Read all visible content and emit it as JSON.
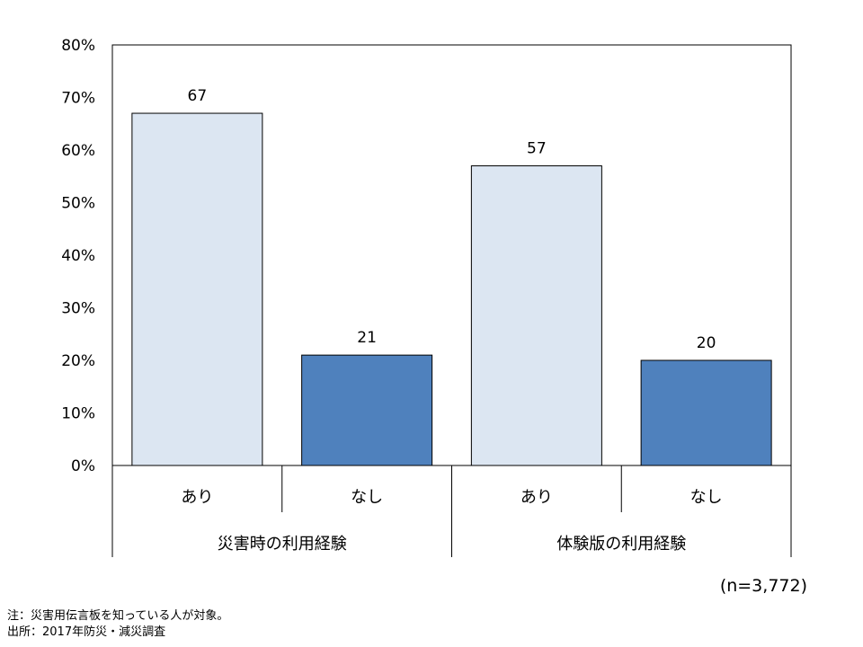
{
  "chart_data": {
    "type": "bar",
    "groups": [
      {
        "label": "災害時の利用経験",
        "categories": [
          "あり",
          "なし"
        ],
        "values": [
          67,
          21
        ]
      },
      {
        "label": "体験版の利用経験",
        "categories": [
          "あり",
          "なし"
        ],
        "values": [
          57,
          20
        ]
      }
    ],
    "y_ticks": [
      "0%",
      "10%",
      "20%",
      "30%",
      "40%",
      "50%",
      "60%",
      "70%",
      "80%"
    ],
    "ylim": [
      0,
      80
    ],
    "grid": false,
    "colors": {
      "あり": "#dce6f2",
      "なし": "#4f81bd"
    },
    "sample_size": "(n=3,772)"
  },
  "notes": {
    "note": "注：災害用伝言板を知っている人が対象。",
    "source": "出所：2017年防災・減災調査"
  }
}
